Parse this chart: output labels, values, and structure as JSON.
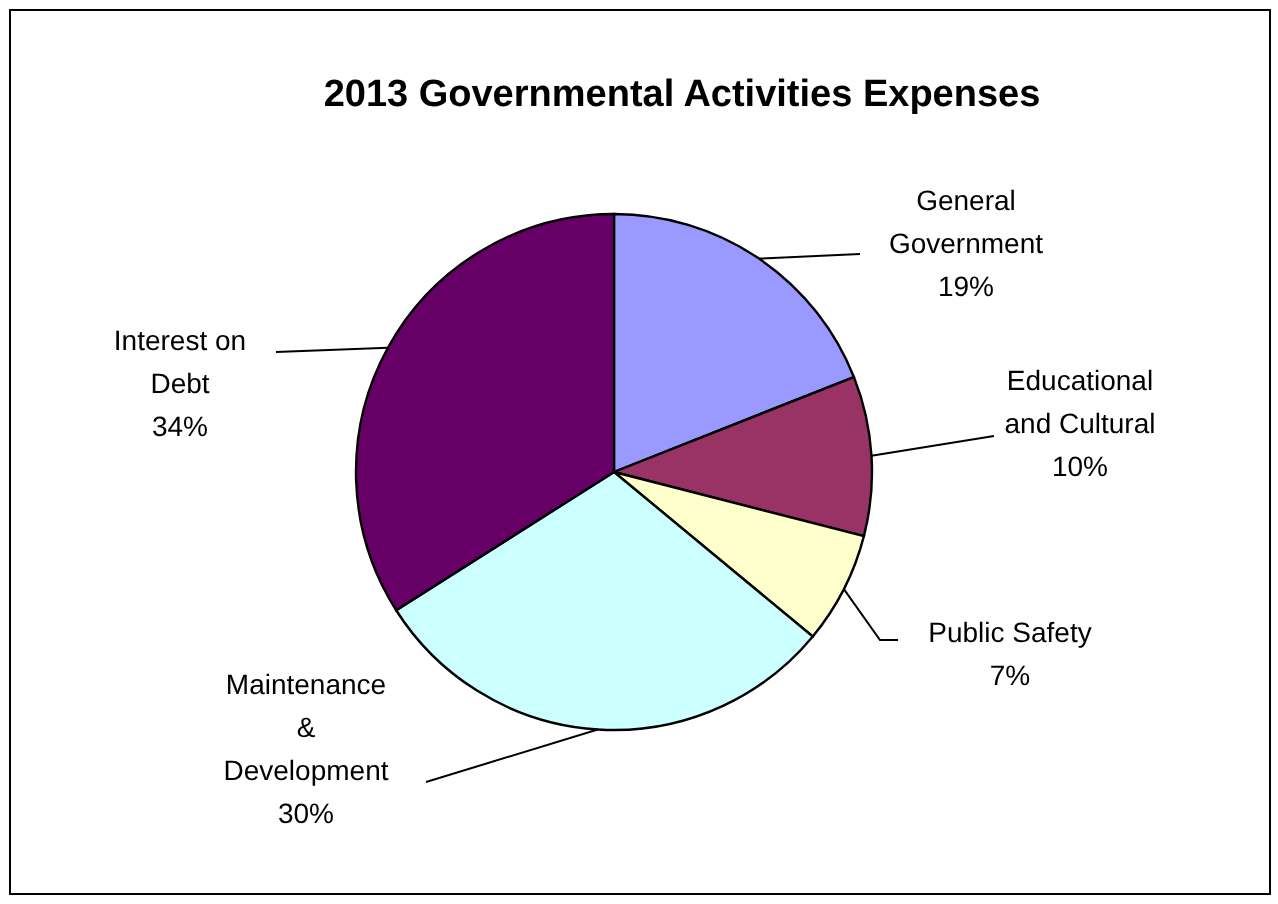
{
  "chart_data": {
    "type": "pie",
    "title": "2013 Governmental Activities Expenses",
    "categories": [
      "General\nGovernment",
      "Educational\nand Cultural",
      "Public Safety",
      "Maintenance\n&\nDevelopment",
      "Interest on\nDebt"
    ],
    "values": [
      19,
      10,
      7,
      30,
      34
    ],
    "colors": [
      "#9999ff",
      "#993366",
      "#ffffcc",
      "#ccffff",
      "#660066"
    ],
    "value_labels": [
      "19%",
      "10%",
      "7%",
      "30%",
      "34%"
    ]
  }
}
